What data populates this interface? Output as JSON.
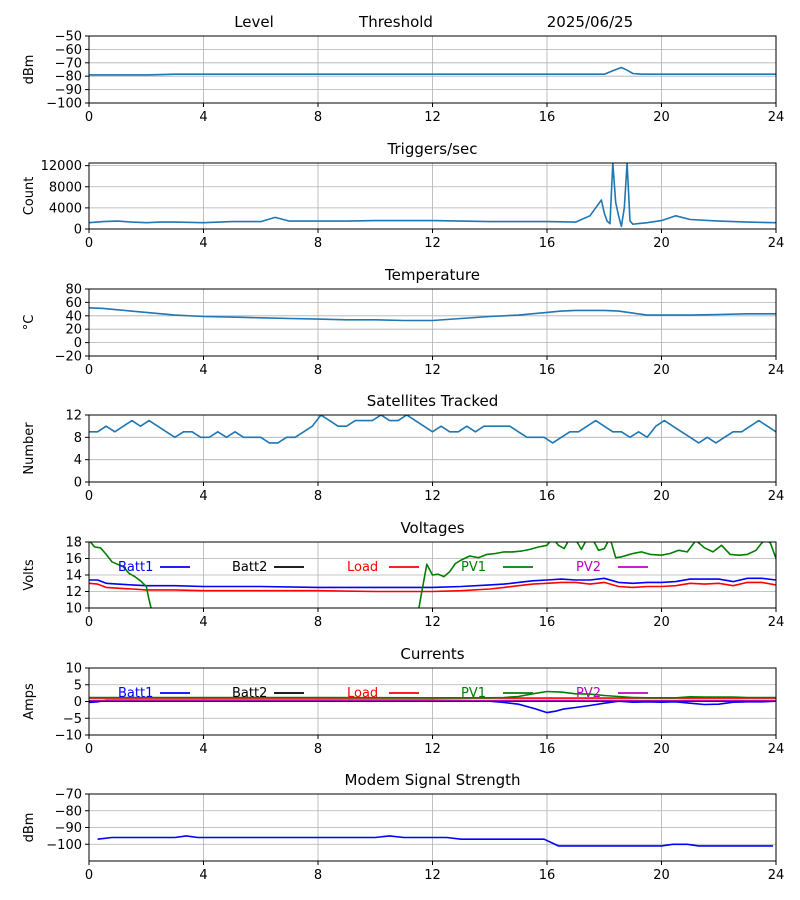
{
  "header": {
    "level": "Level",
    "threshold": "Threshold",
    "date": "2025/06/25"
  },
  "colors": {
    "default": "#1f77b4",
    "batt1": "#0000ff",
    "batt2": "#000000",
    "load": "#ff0000",
    "pv1": "#008000",
    "pv2": "#bf00bf",
    "grid": "#b0b0b0"
  },
  "chart_data": [
    {
      "id": "level",
      "type": "line",
      "title": "",
      "ylabel": "dBm",
      "xlim": [
        0,
        24
      ],
      "ylim": [
        -100,
        -50
      ],
      "xticks": [
        0,
        4,
        8,
        12,
        16,
        20,
        24
      ],
      "yticks": [
        -100,
        -90,
        -80,
        -70,
        -60,
        -50
      ],
      "grid": true,
      "series": [
        {
          "color": "#1f77b4",
          "x": [
            0,
            1,
            2,
            3,
            4,
            6,
            8,
            10,
            12,
            14,
            16,
            17,
            18,
            18.3,
            18.6,
            18.8,
            19,
            19.3,
            20,
            21,
            22,
            23,
            24
          ],
          "y": [
            -79,
            -79,
            -79,
            -78.5,
            -78.5,
            -78.5,
            -78.5,
            -78.5,
            -78.5,
            -78.5,
            -78.5,
            -78.5,
            -78.5,
            -76,
            -73.5,
            -75.5,
            -78,
            -78.5,
            -78.5,
            -78.5,
            -78.5,
            -78.5,
            -78.5
          ]
        }
      ]
    },
    {
      "id": "triggers",
      "type": "line",
      "title": "Triggers/sec",
      "ylabel": "Count",
      "xlim": [
        0,
        24
      ],
      "ylim": [
        0,
        12500
      ],
      "xticks": [
        0,
        4,
        8,
        12,
        16,
        20,
        24
      ],
      "yticks": [
        0,
        4000,
        8000,
        12000
      ],
      "grid": true,
      "series": [
        {
          "color": "#1f77b4",
          "x": [
            0,
            0.5,
            1,
            1.5,
            2,
            2.5,
            3,
            4,
            5,
            6,
            6.5,
            7,
            8,
            9,
            10,
            11,
            12,
            13,
            14,
            15,
            16,
            17,
            17.5,
            17.9,
            18,
            18.1,
            18.2,
            18.3,
            18.4,
            18.5,
            18.6,
            18.7,
            18.8,
            18.9,
            19,
            19.5,
            20,
            20.5,
            21,
            22,
            23,
            24
          ],
          "y": [
            1200,
            1400,
            1500,
            1300,
            1200,
            1300,
            1300,
            1200,
            1400,
            1400,
            2200,
            1500,
            1500,
            1500,
            1600,
            1600,
            1600,
            1500,
            1400,
            1400,
            1400,
            1300,
            2500,
            5500,
            3000,
            1500,
            1000,
            12500,
            5000,
            2500,
            500,
            4000,
            12500,
            1500,
            900,
            1200,
            1600,
            2500,
            1800,
            1500,
            1300,
            1200
          ]
        }
      ]
    },
    {
      "id": "temperature",
      "type": "line",
      "title": "Temperature",
      "ylabel": "°C",
      "xlim": [
        0,
        24
      ],
      "ylim": [
        -20,
        80
      ],
      "xticks": [
        0,
        4,
        8,
        12,
        16,
        20,
        24
      ],
      "yticks": [
        -20,
        0,
        20,
        40,
        60,
        80
      ],
      "grid": true,
      "series": [
        {
          "color": "#1f77b4",
          "x": [
            0,
            0.5,
            1,
            2,
            3,
            4,
            5,
            6,
            7,
            8,
            9,
            10,
            11,
            12,
            13,
            14,
            15,
            16,
            16.5,
            17,
            17.5,
            18,
            18.5,
            19,
            19.5,
            20,
            21,
            22,
            23,
            24
          ],
          "y": [
            52,
            51,
            49,
            45,
            41,
            39,
            38,
            37,
            36,
            35,
            34,
            34,
            33,
            33,
            36,
            39,
            41,
            45,
            47,
            48,
            48,
            48,
            47,
            44,
            41,
            41,
            41,
            42,
            43,
            43
          ]
        }
      ]
    },
    {
      "id": "satellites",
      "type": "line",
      "title": "Satellites Tracked",
      "ylabel": "Number",
      "xlim": [
        0,
        24
      ],
      "ylim": [
        0,
        12
      ],
      "xticks": [
        0,
        4,
        8,
        12,
        16,
        20,
        24
      ],
      "yticks": [
        0,
        4,
        8,
        12
      ],
      "grid": true,
      "series": [
        {
          "color": "#1f77b4",
          "x": [
            0,
            0.3,
            0.6,
            0.9,
            1.2,
            1.5,
            1.8,
            2.1,
            2.4,
            2.7,
            3,
            3.3,
            3.6,
            3.9,
            4.2,
            4.5,
            4.8,
            5.1,
            5.4,
            5.7,
            6,
            6.3,
            6.6,
            6.9,
            7.2,
            7.5,
            7.8,
            8.1,
            8.4,
            8.7,
            9,
            9.3,
            9.6,
            9.9,
            10.2,
            10.5,
            10.8,
            11.1,
            11.4,
            11.7,
            12,
            12.3,
            12.6,
            12.9,
            13.2,
            13.5,
            13.8,
            14.1,
            14.4,
            14.7,
            15,
            15.3,
            15.6,
            15.9,
            16.2,
            16.5,
            16.8,
            17.1,
            17.4,
            17.7,
            18,
            18.3,
            18.6,
            18.9,
            19.2,
            19.5,
            19.8,
            20.1,
            20.4,
            20.7,
            21,
            21.3,
            21.6,
            21.9,
            22.2,
            22.5,
            22.8,
            23.1,
            23.4,
            23.7,
            24
          ],
          "y": [
            9,
            9,
            10,
            9,
            10,
            11,
            10,
            11,
            10,
            9,
            8,
            9,
            9,
            8,
            8,
            9,
            8,
            9,
            8,
            8,
            8,
            7,
            7,
            8,
            8,
            9,
            10,
            12,
            11,
            10,
            10,
            11,
            11,
            11,
            12,
            11,
            11,
            12,
            11,
            10,
            9,
            10,
            9,
            9,
            10,
            9,
            10,
            10,
            10,
            10,
            9,
            8,
            8,
            8,
            7,
            8,
            9,
            9,
            10,
            11,
            10,
            9,
            9,
            8,
            9,
            8,
            10,
            11,
            10,
            9,
            8,
            7,
            8,
            7,
            8,
            9,
            9,
            10,
            11,
            10,
            9
          ]
        }
      ]
    },
    {
      "id": "voltages",
      "type": "line",
      "title": "Voltages",
      "ylabel": "Volts",
      "xlim": [
        0,
        24
      ],
      "ylim": [
        10,
        18
      ],
      "xticks": [
        0,
        4,
        8,
        12,
        16,
        20,
        24
      ],
      "yticks": [
        10,
        12,
        14,
        16,
        18
      ],
      "grid": true,
      "legend": [
        {
          "label": "Batt1",
          "color": "#0000ff"
        },
        {
          "label": "Batt2",
          "color": "#000000"
        },
        {
          "label": "Load",
          "color": "#ff0000"
        },
        {
          "label": "PV1",
          "color": "#008000"
        },
        {
          "label": "PV2",
          "color": "#bf00bf"
        }
      ],
      "series": [
        {
          "color": "#0000ff",
          "x": [
            0,
            0.3,
            0.6,
            1,
            1.5,
            2,
            3,
            4,
            6,
            8,
            10,
            12,
            13,
            14,
            14.5,
            15,
            15.5,
            16,
            16.5,
            17,
            17.5,
            18,
            18.5,
            19,
            19.5,
            20,
            20.5,
            21,
            21.5,
            22,
            22.5,
            23,
            23.5,
            24
          ],
          "y": [
            13.4,
            13.4,
            13.0,
            12.9,
            12.8,
            12.7,
            12.7,
            12.6,
            12.6,
            12.5,
            12.5,
            12.5,
            12.6,
            12.8,
            12.9,
            13.1,
            13.3,
            13.4,
            13.5,
            13.4,
            13.4,
            13.6,
            13.1,
            13.0,
            13.1,
            13.1,
            13.2,
            13.5,
            13.5,
            13.5,
            13.2,
            13.6,
            13.6,
            13.4
          ]
        },
        {
          "color": "#ff0000",
          "x": [
            0,
            0.3,
            0.6,
            1,
            1.5,
            2,
            3,
            4,
            6,
            8,
            10,
            12,
            13,
            14,
            14.5,
            15,
            15.5,
            16,
            16.5,
            17,
            17.5,
            18,
            18.5,
            19,
            19.5,
            20,
            20.5,
            21,
            21.5,
            22,
            22.5,
            23,
            23.5,
            24
          ],
          "y": [
            13.0,
            12.9,
            12.5,
            12.4,
            12.3,
            12.2,
            12.2,
            12.1,
            12.1,
            12.1,
            12.0,
            12.0,
            12.1,
            12.3,
            12.5,
            12.7,
            12.9,
            13.0,
            13.1,
            13.1,
            12.9,
            13.1,
            12.6,
            12.5,
            12.6,
            12.6,
            12.7,
            13.0,
            12.9,
            13.0,
            12.7,
            13.1,
            13.1,
            12.8
          ]
        },
        {
          "color": "#008000",
          "x": [
            0,
            0.2,
            0.4,
            0.6,
            0.8,
            1.0,
            1.2,
            1.4,
            1.6,
            1.8,
            2.0,
            2.1,
            2.2,
            11.5,
            11.6,
            11.8,
            12,
            12.2,
            12.4,
            12.6,
            12.8,
            13,
            13.3,
            13.6,
            13.9,
            14.2,
            14.5,
            14.8,
            15.1,
            15.4,
            15.7,
            16,
            16.2,
            16.4,
            16.6,
            16.8,
            17,
            17.2,
            17.4,
            17.6,
            17.8,
            18,
            18.2,
            18.4,
            18.6,
            18.8,
            19,
            19.3,
            19.6,
            20,
            20.3,
            20.6,
            20.9,
            21.2,
            21.5,
            21.8,
            22.1,
            22.4,
            22.7,
            23,
            23.3,
            23.6,
            23.8,
            24
          ],
          "y": [
            18.2,
            17.4,
            17.3,
            16.5,
            15.6,
            15.3,
            15.0,
            14.2,
            13.8,
            13.3,
            12.6,
            11.0,
            9.5,
            9.5,
            11.5,
            15.3,
            14.0,
            14.1,
            13.8,
            14.4,
            15.4,
            15.8,
            16.3,
            16.1,
            16.5,
            16.6,
            16.8,
            16.8,
            16.9,
            17.1,
            17.4,
            17.6,
            18.5,
            17.6,
            17.2,
            18.5,
            18.3,
            17.1,
            18.4,
            18.3,
            17.0,
            17.2,
            18.5,
            16.1,
            16.2,
            16.4,
            16.6,
            16.8,
            16.5,
            16.4,
            16.6,
            17.0,
            16.8,
            18.2,
            17.3,
            16.8,
            17.6,
            16.5,
            16.4,
            16.5,
            17.0,
            18.3,
            17.9,
            16.0
          ]
        }
      ]
    },
    {
      "id": "currents",
      "type": "line",
      "title": "Currents",
      "ylabel": "Amps",
      "xlim": [
        0,
        24
      ],
      "ylim": [
        -10,
        10
      ],
      "xticks": [
        0,
        4,
        8,
        12,
        16,
        20,
        24
      ],
      "yticks": [
        -10,
        -5,
        0,
        5,
        10
      ],
      "grid": true,
      "legend": [
        {
          "label": "Batt1",
          "color": "#0000ff"
        },
        {
          "label": "Batt2",
          "color": "#000000"
        },
        {
          "label": "Load",
          "color": "#ff0000"
        },
        {
          "label": "PV1",
          "color": "#008000"
        },
        {
          "label": "PV2",
          "color": "#bf00bf"
        }
      ],
      "series": [
        {
          "color": "#0000ff",
          "x": [
            0,
            0.3,
            0.6,
            1,
            2,
            4,
            6,
            8,
            10,
            12,
            13,
            14,
            14.5,
            15,
            15.3,
            15.6,
            16,
            16.3,
            16.6,
            17,
            17.5,
            18,
            18.5,
            19,
            19.5,
            20,
            20.5,
            21,
            21.5,
            22,
            22.5,
            23,
            23.5,
            24
          ],
          "y": [
            -0.3,
            -0.1,
            0.4,
            0.4,
            0.4,
            0.4,
            0.4,
            0.4,
            0.4,
            0.4,
            0.3,
            0.1,
            -0.3,
            -0.8,
            -1.5,
            -2.2,
            -3.3,
            -2.9,
            -2.2,
            -1.8,
            -1.2,
            -0.5,
            0.1,
            -0.2,
            -0.1,
            -0.2,
            -0.1,
            -0.5,
            -0.9,
            -0.8,
            -0.2,
            -0.1,
            -0.1,
            0.1
          ]
        },
        {
          "color": "#000000",
          "x": [
            0,
            24
          ],
          "y": [
            0.1,
            0.1
          ]
        },
        {
          "color": "#ff0000",
          "x": [
            0,
            2,
            4,
            8,
            12,
            16,
            20,
            24
          ],
          "y": [
            1.0,
            1.0,
            1.0,
            1.0,
            1.0,
            1.0,
            1.0,
            1.0
          ]
        },
        {
          "color": "#008000",
          "x": [
            0,
            2,
            4,
            8,
            12,
            13,
            14,
            14.5,
            15,
            15.5,
            16,
            16.5,
            17,
            17.5,
            18,
            18.5,
            19,
            19.5,
            20,
            20.5,
            21,
            21.5,
            22,
            22.5,
            23,
            24
          ],
          "y": [
            1.2,
            1.2,
            1.2,
            1.2,
            1.1,
            1.1,
            1.1,
            1.2,
            1.5,
            2.3,
            3.0,
            2.8,
            2.3,
            2.2,
            1.8,
            1.5,
            1.2,
            1.1,
            1.1,
            1.1,
            1.4,
            1.3,
            1.3,
            1.3,
            1.2,
            1.2
          ]
        },
        {
          "color": "#bf00bf",
          "x": [
            0,
            24
          ],
          "y": [
            0.3,
            0.3
          ]
        }
      ]
    },
    {
      "id": "modem",
      "type": "line",
      "title": "Modem Signal Strength",
      "ylabel": "dBm",
      "xlim": [
        0,
        24
      ],
      "ylim": [
        -110,
        -70
      ],
      "xticks": [
        0,
        4,
        8,
        12,
        16,
        20,
        24
      ],
      "yticks": [
        -100,
        -90,
        -80,
        -70
      ],
      "grid": true,
      "series": [
        {
          "color": "#0000ff",
          "x": [
            0.3,
            0.8,
            3,
            3.4,
            3.8,
            10,
            10.5,
            11,
            12.5,
            13,
            15.9,
            16.4,
            20,
            20.4,
            20.9,
            21.3,
            23.9
          ],
          "y": [
            -97,
            -96,
            -96,
            -95,
            -96,
            -96,
            -95,
            -96,
            -96,
            -97,
            -97,
            -101,
            -101,
            -100,
            -100,
            -101,
            -101
          ]
        }
      ]
    }
  ]
}
